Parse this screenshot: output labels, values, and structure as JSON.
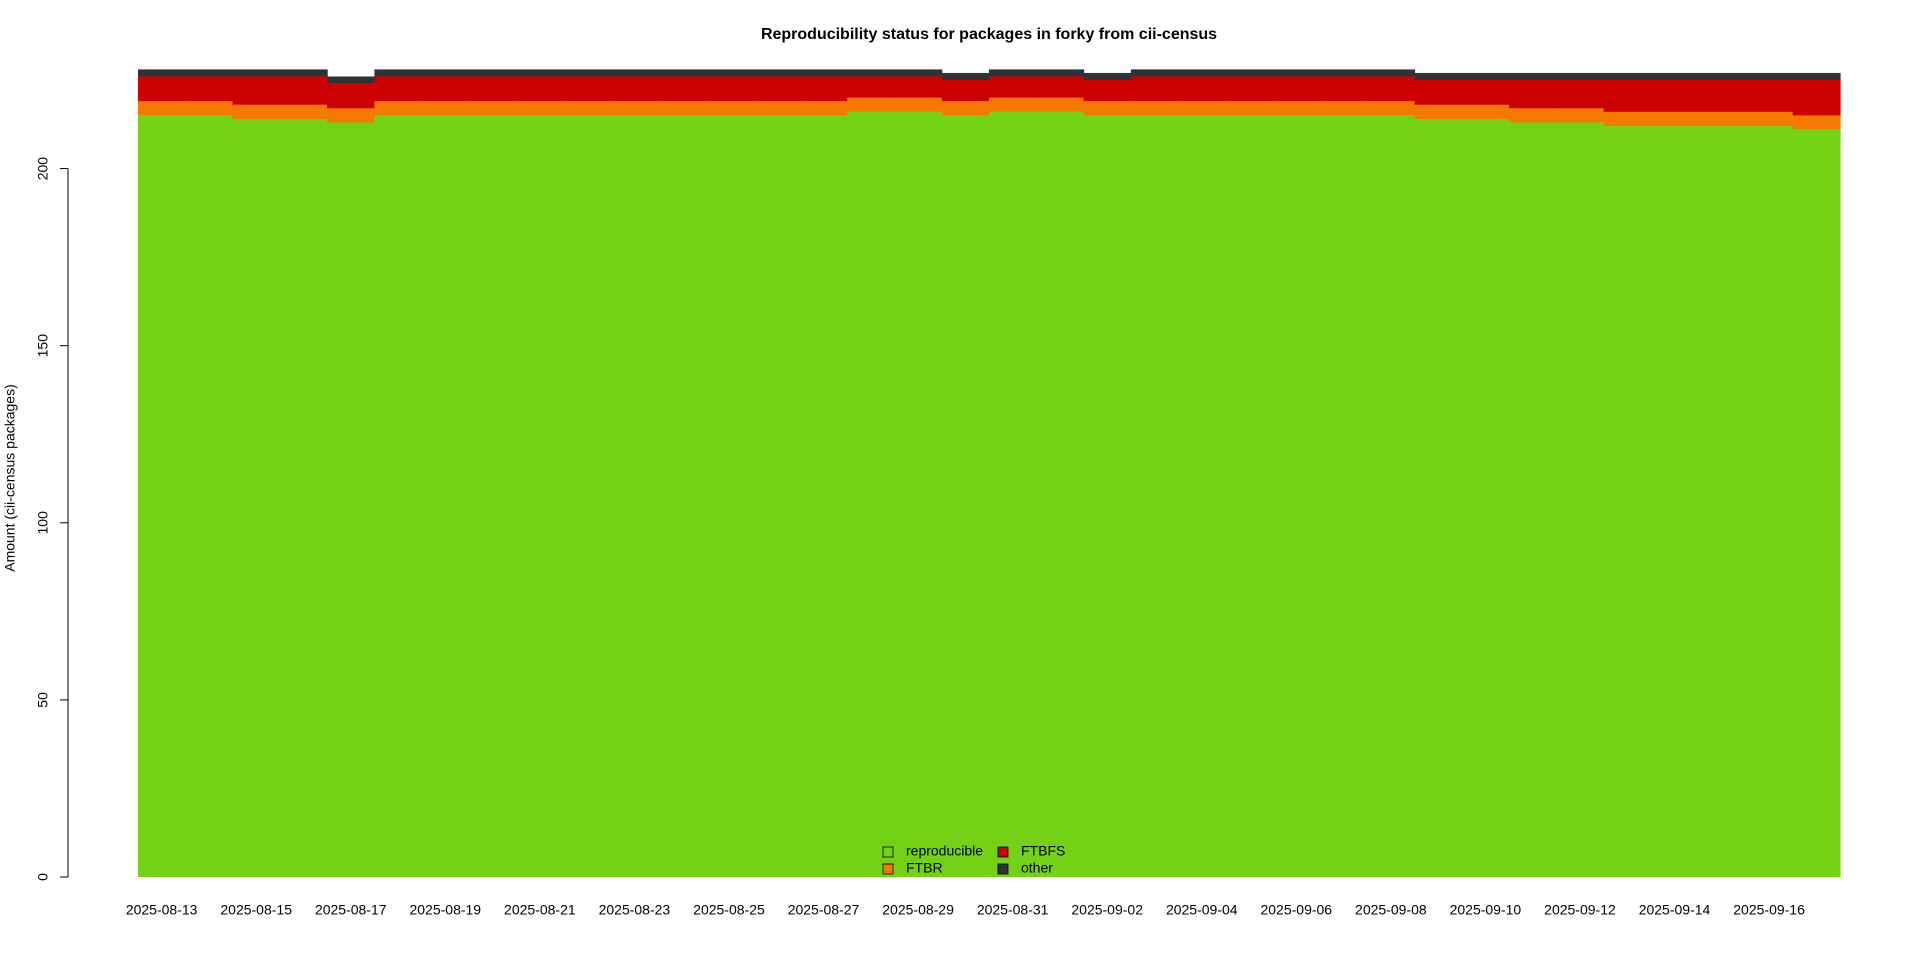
{
  "chart_data": {
    "type": "stacked-step-area",
    "title": "Reproducibility status for packages in forky from cii-census",
    "y_label": "Amount (cii-census packages)",
    "categories": [
      "2025-08-13",
      null,
      "2025-08-15",
      null,
      "2025-08-17",
      null,
      "2025-08-19",
      null,
      "2025-08-21",
      null,
      "2025-08-23",
      null,
      "2025-08-25",
      null,
      "2025-08-27",
      null,
      "2025-08-29",
      null,
      "2025-08-31",
      null,
      "2025-09-02",
      null,
      "2025-09-04",
      null,
      "2025-09-06",
      null,
      "2025-09-08",
      null,
      "2025-09-10",
      null,
      "2025-09-12",
      null,
      "2025-09-14",
      null,
      "2025-09-16",
      null
    ],
    "series": [
      {
        "name": "reproducible",
        "color": "#73d216",
        "values": [
          215,
          215,
          214,
          214,
          213,
          215,
          215,
          215,
          215,
          215,
          215,
          215,
          215,
          215,
          215,
          216,
          216,
          215,
          216,
          216,
          215,
          215,
          215,
          215,
          215,
          215,
          215,
          214,
          214,
          213,
          213,
          212,
          212,
          212,
          212,
          211
        ]
      },
      {
        "name": "FTBR",
        "color": "#f57900",
        "values": [
          4,
          4,
          4,
          4,
          4,
          4,
          4,
          4,
          4,
          4,
          4,
          4,
          4,
          4,
          4,
          4,
          4,
          4,
          4,
          4,
          4,
          4,
          4,
          4,
          4,
          4,
          4,
          4,
          4,
          4,
          4,
          4,
          4,
          4,
          4,
          4
        ]
      },
      {
        "name": "FTBFS",
        "color": "#cc0000",
        "values": [
          7,
          7,
          8,
          8,
          7,
          7,
          7,
          7,
          7,
          7,
          7,
          7,
          7,
          7,
          7,
          6,
          6,
          6,
          6,
          6,
          6,
          7,
          7,
          7,
          7,
          7,
          7,
          7,
          7,
          8,
          8,
          9,
          9,
          9,
          9,
          10
        ]
      },
      {
        "name": "other",
        "color": "#2e3436",
        "values": [
          2,
          2,
          2,
          2,
          2,
          2,
          2,
          2,
          2,
          2,
          2,
          2,
          2,
          2,
          2,
          2,
          2,
          2,
          2,
          2,
          2,
          2,
          2,
          2,
          2,
          2,
          2,
          2,
          2,
          2,
          2,
          2,
          2,
          2,
          2,
          2
        ]
      }
    ],
    "ylim": [
      0,
      228
    ],
    "yticks": [
      0,
      50,
      100,
      150,
      200
    ]
  }
}
